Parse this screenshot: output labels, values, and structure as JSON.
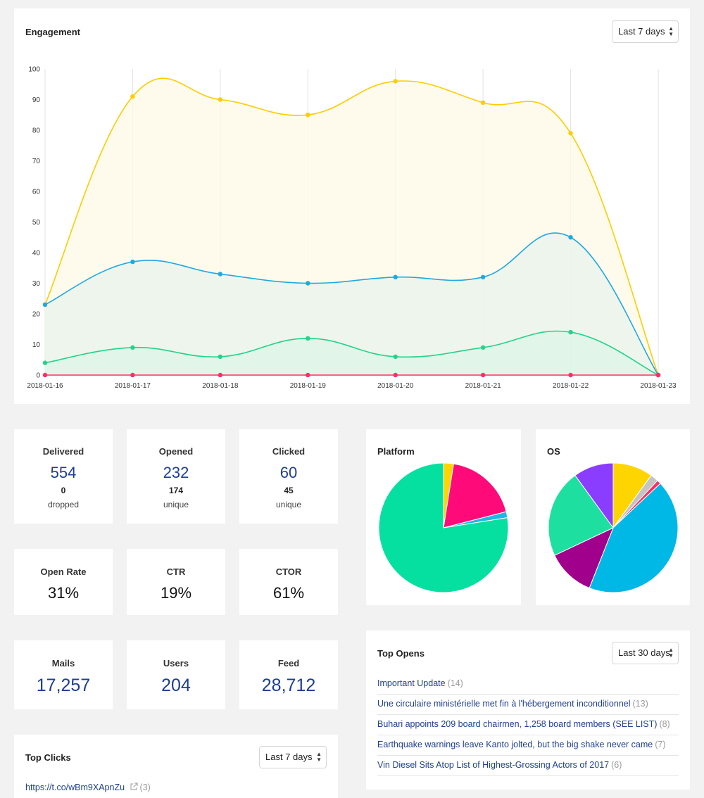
{
  "engagement": {
    "title": "Engagement",
    "range": "Last 7 days"
  },
  "chart_data": {
    "type": "area",
    "x": [
      "2018-01-16",
      "2018-01-17",
      "2018-01-18",
      "2018-01-19",
      "2018-01-20",
      "2018-01-21",
      "2018-01-22",
      "2018-01-23"
    ],
    "ylim": [
      0,
      100
    ],
    "yticks": [
      0,
      10,
      20,
      30,
      40,
      50,
      60,
      70,
      80,
      90,
      100
    ],
    "grid": "vertical",
    "series": [
      {
        "color": "#ffcc00",
        "fill": "#fff9e6",
        "values": [
          23,
          91,
          90,
          85,
          96,
          89,
          79,
          0
        ]
      },
      {
        "color": "#1fa9e1",
        "fill": "#e8f3ee",
        "values": [
          23,
          37,
          33,
          30,
          32,
          32,
          45,
          0
        ]
      },
      {
        "color": "#22d48b",
        "fill": "#dcf5e7",
        "values": [
          4,
          9,
          6,
          12,
          6,
          9,
          14,
          0
        ]
      },
      {
        "color": "#ff2e62",
        "fill": "none",
        "values": [
          0,
          0,
          0,
          0,
          0,
          0,
          0,
          0
        ]
      }
    ]
  },
  "stats": {
    "delivered": {
      "label": "Delivered",
      "value": "554",
      "sub": "0",
      "sub_label": "dropped"
    },
    "opened": {
      "label": "Opened",
      "value": "232",
      "sub": "174",
      "sub_label": "unique"
    },
    "clicked": {
      "label": "Clicked",
      "value": "60",
      "sub": "45",
      "sub_label": "unique"
    },
    "open_rate": {
      "label": "Open Rate",
      "value": "31%"
    },
    "ctr": {
      "label": "CTR",
      "value": "19%"
    },
    "ctor": {
      "label": "CTOR",
      "value": "61%"
    },
    "mails": {
      "label": "Mails",
      "value": "17,257"
    },
    "users": {
      "label": "Users",
      "value": "204"
    },
    "feed": {
      "label": "Feed",
      "value": "28,712"
    }
  },
  "platform": {
    "title": "Platform",
    "slices": [
      {
        "value": 2.5,
        "color": "#ffd500"
      },
      {
        "value": 18.5,
        "color": "#ff0a78"
      },
      {
        "value": 1.5,
        "color": "#1fb8e6"
      },
      {
        "value": 77.5,
        "color": "#05e0a0"
      }
    ]
  },
  "os": {
    "title": "OS",
    "slices": [
      {
        "value": 10,
        "color": "#ffd500"
      },
      {
        "value": 2,
        "color": "#c4c4c4"
      },
      {
        "value": 1,
        "color": "#ff2e62"
      },
      {
        "value": 43,
        "color": "#00b8e6"
      },
      {
        "value": 12,
        "color": "#a0008c"
      },
      {
        "value": 22,
        "color": "#1de0a0"
      },
      {
        "value": 10,
        "color": "#8a3dff"
      }
    ]
  },
  "top_opens": {
    "title": "Top Opens",
    "range": "Last 30 days",
    "items": [
      {
        "text": "Important Update",
        "count": "(14)"
      },
      {
        "text": "Une circulaire ministérielle met fin à l'hébergement inconditionnel",
        "count": "(13)"
      },
      {
        "text": "Buhari appoints 209 board chairmen, 1,258 board members (SEE LIST)",
        "count": "(8)"
      },
      {
        "text": "Earthquake warnings leave Kanto jolted, but the big shake never came",
        "count": "(7)"
      },
      {
        "text": "Vin Diesel Sits Atop List of Highest-Grossing Actors of 2017",
        "count": "(6)"
      }
    ]
  },
  "top_clicks": {
    "title": "Top Clicks",
    "range": "Last 7 days",
    "items": [
      {
        "text": "https://t.co/wBm9XApnZu",
        "count": "(3)"
      }
    ]
  }
}
